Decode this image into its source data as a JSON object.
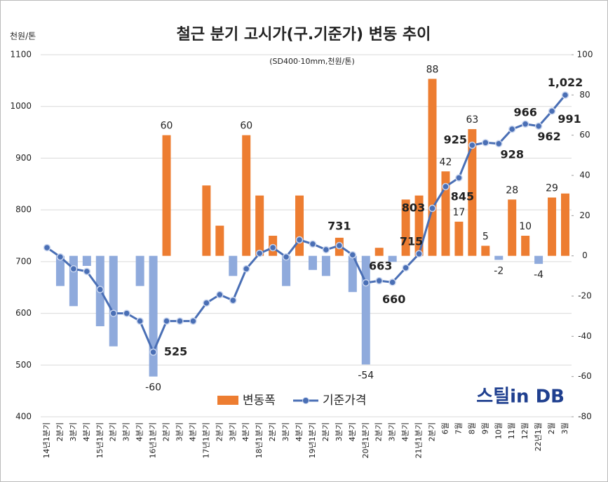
{
  "chart_data": {
    "type": "bar_line",
    "title": "철근 분기 고시가(구.기준가) 변동 추이",
    "subtitle": "(SD400·10mm,천원/톤)",
    "y_axis_label": "천원/톤",
    "logo": "스틸in DB",
    "categories": [
      "14년1분기",
      "2분기",
      "3분기",
      "4분기",
      "15년1분기",
      "2분기",
      "3분기",
      "4분기",
      "16년1분기",
      "2분기",
      "3분기",
      "4분기",
      "17년1분기",
      "2분기",
      "3분기",
      "4분기",
      "18년1분기",
      "2분기",
      "3분기",
      "4분기",
      "19년1분기",
      "2분기",
      "3분기",
      "4분기",
      "20년1분기",
      "2분기",
      "3분기",
      "4분기",
      "21년1분기",
      "2분기",
      "6월",
      "7월",
      "8월",
      "9월",
      "10월",
      "11월",
      "12월",
      "22년1월",
      "2월",
      "3월"
    ],
    "series": [
      {
        "name": "변동폭",
        "color": "#ed7d31",
        "negative_color": "#8faadc",
        "axis": "y2",
        "values": [
          0,
          -15,
          -25,
          -5,
          -35,
          -45,
          0,
          -15,
          -60,
          60,
          0,
          0,
          35,
          15,
          -10,
          60,
          30,
          10,
          -15,
          30,
          -7,
          -10,
          9,
          -18,
          -54,
          4,
          -3,
          28,
          30,
          88,
          42,
          17,
          63,
          5,
          -2,
          28,
          10,
          -4,
          29,
          31
        ],
        "value_labels": [
          null,
          null,
          null,
          null,
          null,
          null,
          null,
          null,
          "-60",
          "60",
          null,
          null,
          null,
          null,
          null,
          "60",
          null,
          null,
          null,
          null,
          null,
          null,
          null,
          null,
          "-54",
          null,
          null,
          null,
          null,
          "88",
          "42",
          "17",
          "63",
          "5",
          "-2",
          "28",
          "10",
          "-4",
          "29",
          null
        ]
      },
      {
        "name": "기준가격",
        "color": "#4a6fb5",
        "axis": "y",
        "values": [
          727,
          709,
          686,
          681,
          646,
          600,
          600,
          585,
          525,
          585,
          585,
          585,
          620,
          636,
          625,
          686,
          716,
          727,
          709,
          742,
          734,
          723,
          731,
          713,
          659,
          663,
          660,
          688,
          715,
          803,
          845,
          862,
          925,
          930,
          928,
          956,
          966,
          962,
          991,
          1022
        ],
        "value_labels": [
          null,
          null,
          null,
          null,
          null,
          null,
          null,
          null,
          "525",
          null,
          null,
          null,
          null,
          null,
          null,
          null,
          null,
          null,
          null,
          null,
          null,
          null,
          "731",
          null,
          null,
          "663",
          "660",
          null,
          "715",
          "803",
          "845",
          null,
          "925",
          null,
          "928",
          null,
          "966",
          "962",
          "991",
          "1,022"
        ]
      }
    ],
    "ylim": [
      400,
      1100
    ],
    "yticks": [
      400,
      500,
      600,
      700,
      800,
      900,
      1000,
      1100
    ],
    "y2lim": [
      -80,
      100
    ],
    "y2ticks": [
      -80,
      -60,
      -40,
      -20,
      0,
      20,
      40,
      60,
      80,
      100
    ],
    "grid": true,
    "legend": "bottom"
  }
}
